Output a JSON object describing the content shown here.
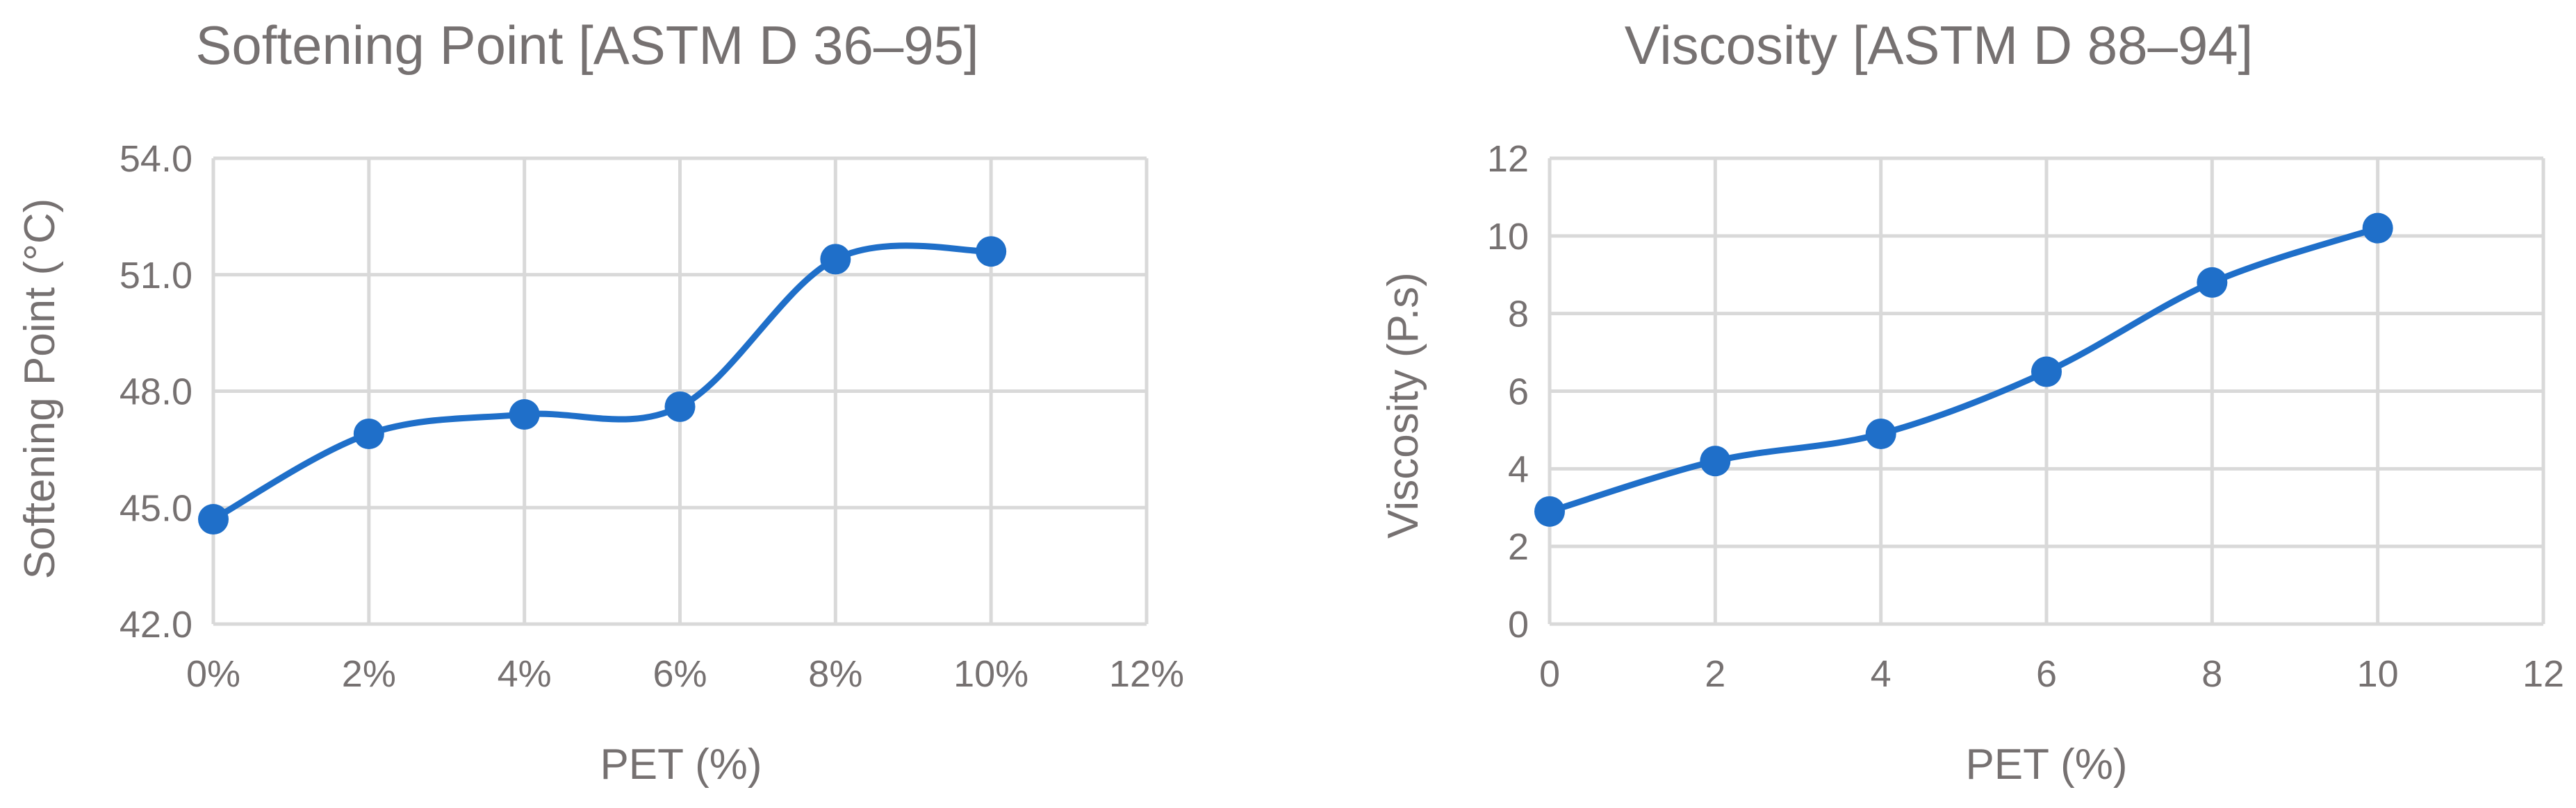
{
  "colors": {
    "series": "#1f6fc9",
    "grid": "#d9d9d9",
    "text": "#767171"
  },
  "chart_data": [
    {
      "type": "line",
      "smooth": true,
      "title": "Softening Point [ASTM D 36–95]",
      "xlabel": "PET (%)",
      "ylabel": "Softening Point (°C)",
      "x": [
        0,
        2,
        4,
        6,
        8,
        10
      ],
      "values": [
        44.7,
        46.9,
        47.4,
        47.6,
        51.4,
        51.6
      ],
      "xlim": [
        0,
        12
      ],
      "ylim": [
        42,
        54
      ],
      "xticks": [
        0,
        2,
        4,
        6,
        8,
        10,
        12
      ],
      "xtick_labels": [
        "0%",
        "2%",
        "4%",
        "6%",
        "8%",
        "10%",
        "12%"
      ],
      "yticks": [
        42,
        45,
        48,
        51,
        54
      ],
      "ytick_labels": [
        "42.0",
        "45.0",
        "48.0",
        "51.0",
        "54.0"
      ],
      "grid": true,
      "legend": "none"
    },
    {
      "type": "line",
      "smooth": true,
      "title": "Viscosity [ASTM D 88–94]",
      "xlabel": "PET (%)",
      "ylabel": "Viscosity (P.s)",
      "x": [
        0,
        2,
        4,
        6,
        8,
        10
      ],
      "values": [
        2.9,
        4.2,
        4.9,
        6.5,
        8.8,
        10.2
      ],
      "xlim": [
        0,
        12
      ],
      "ylim": [
        0,
        12
      ],
      "xticks": [
        0,
        2,
        4,
        6,
        8,
        10,
        12
      ],
      "xtick_labels": [
        "0",
        "2",
        "4",
        "6",
        "8",
        "10",
        "12"
      ],
      "yticks": [
        0,
        2,
        4,
        6,
        8,
        10,
        12
      ],
      "ytick_labels": [
        "0",
        "2",
        "4",
        "6",
        "8",
        "10",
        "12"
      ],
      "grid": true,
      "legend": "none"
    }
  ]
}
